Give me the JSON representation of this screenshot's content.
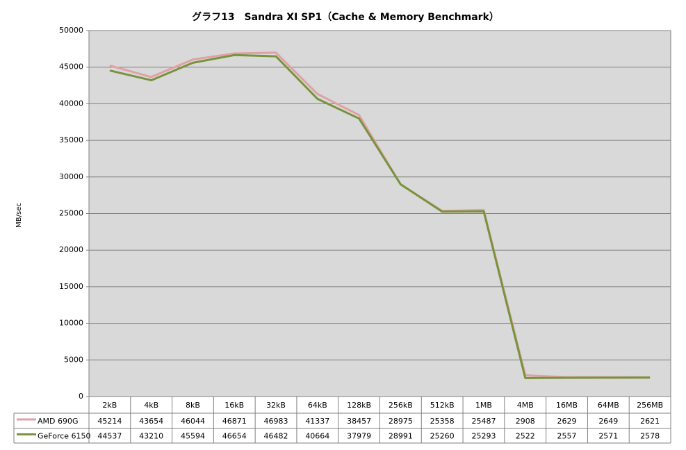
{
  "chart_data": {
    "type": "line",
    "title": "グラフ13　Sandra XI SP1（Cache & Memory Benchmark）",
    "y_label": "MB/sec",
    "categories": [
      "2kB",
      "4kB",
      "8kB",
      "16kB",
      "32kB",
      "64kB",
      "128kB",
      "256kB",
      "512kB",
      "1MB",
      "4MB",
      "16MB",
      "64MB",
      "256MB"
    ],
    "series": [
      {
        "name": "AMD 690G",
        "color": "#e0a0a4",
        "values": [
          45214,
          43654,
          46044,
          46871,
          46983,
          41337,
          38457,
          28975,
          25358,
          25487,
          2908,
          2629,
          2649,
          2621
        ]
      },
      {
        "name": "GeForce 6150",
        "color": "#77933c",
        "values": [
          44537,
          43210,
          45594,
          46654,
          46482,
          40664,
          37979,
          28991,
          25260,
          25293,
          2522,
          2557,
          2571,
          2578
        ]
      }
    ],
    "ylim": [
      0,
      50000
    ],
    "yticks": [
      0,
      5000,
      10000,
      15000,
      20000,
      25000,
      30000,
      35000,
      40000,
      45000,
      50000
    ],
    "grid": true
  }
}
